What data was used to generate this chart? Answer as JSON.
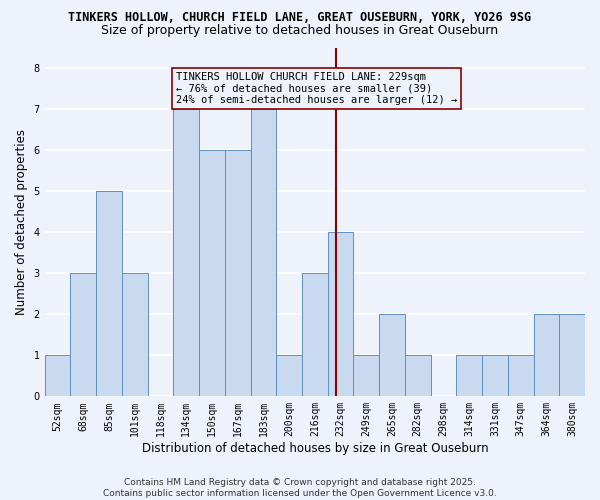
{
  "title": "TINKERS HOLLOW, CHURCH FIELD LANE, GREAT OUSEBURN, YORK, YO26 9SG",
  "subtitle": "Size of property relative to detached houses in Great Ouseburn",
  "xlabel": "Distribution of detached houses by size in Great Ouseburn",
  "ylabel": "Number of detached properties",
  "categories": [
    "52sqm",
    "68sqm",
    "85sqm",
    "101sqm",
    "118sqm",
    "134sqm",
    "150sqm",
    "167sqm",
    "183sqm",
    "200sqm",
    "216sqm",
    "232sqm",
    "249sqm",
    "265sqm",
    "282sqm",
    "298sqm",
    "314sqm",
    "331sqm",
    "347sqm",
    "364sqm",
    "380sqm"
  ],
  "values": [
    1,
    3,
    5,
    3,
    0,
    7,
    6,
    6,
    7,
    1,
    3,
    4,
    1,
    2,
    1,
    0,
    1,
    1,
    1,
    2,
    2
  ],
  "bar_color": "#c9d9f0",
  "bar_edge_color": "#6090c0",
  "bar_edge_width": 0.7,
  "vline_color": "#8b0000",
  "vline_x_sqm": 229,
  "vline_x_left_sqm": 216,
  "vline_x_right_sqm": 232,
  "vline_x_left_idx": 10,
  "annotation_line1": "TINKERS HOLLOW CHURCH FIELD LANE: 229sqm",
  "annotation_line2": "← 76% of detached houses are smaller (39)",
  "annotation_line3": "24% of semi-detached houses are larger (12) →",
  "ylim": [
    0,
    8.5
  ],
  "yticks": [
    0,
    1,
    2,
    3,
    4,
    5,
    6,
    7,
    8
  ],
  "background_color": "#eef2fb",
  "grid_color": "#ffffff",
  "footer_line1": "Contains HM Land Registry data © Crown copyright and database right 2025.",
  "footer_line2": "Contains public sector information licensed under the Open Government Licence v3.0.",
  "title_fontsize": 8.5,
  "subtitle_fontsize": 9.0,
  "xlabel_fontsize": 8.5,
  "ylabel_fontsize": 8.5,
  "tick_fontsize": 7.0,
  "annotation_fontsize": 7.5,
  "footer_fontsize": 6.5
}
